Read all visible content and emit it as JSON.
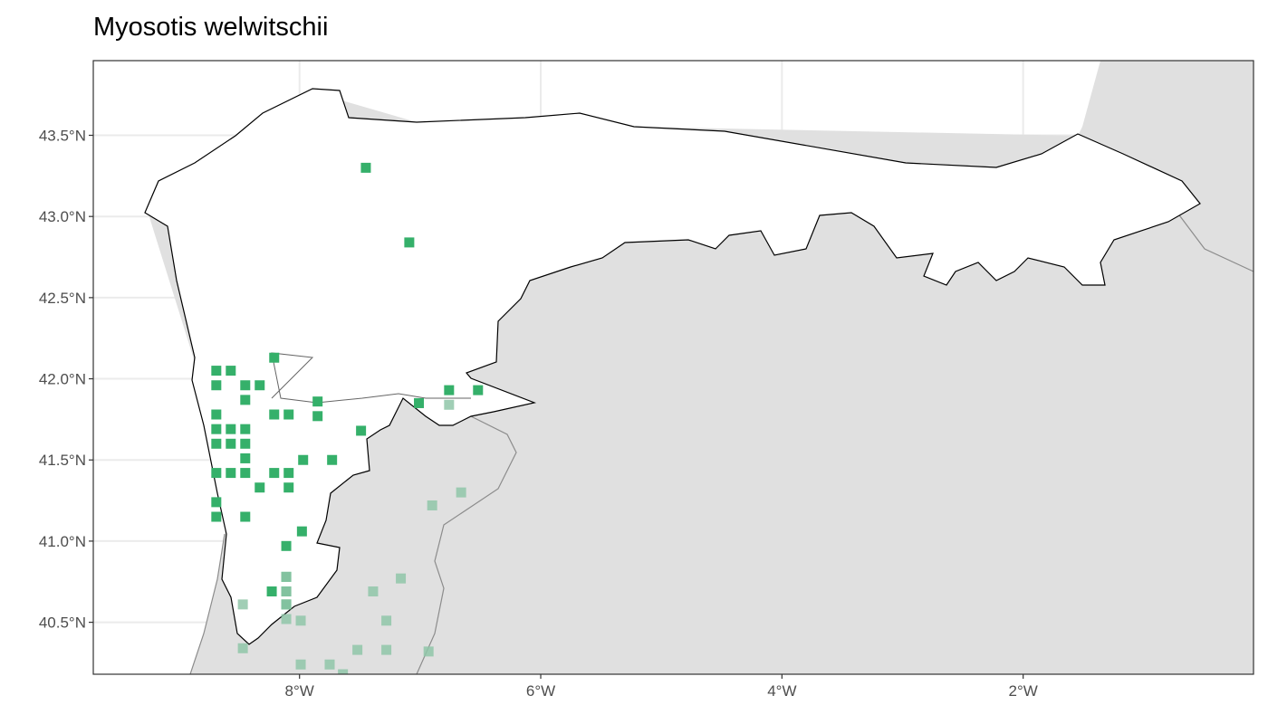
{
  "title": "Myosotis welwitschii",
  "chart_data": {
    "type": "scatter",
    "title": "Myosotis welwitschii",
    "xlabel": "",
    "ylabel": "",
    "xlim": [
      -9.71,
      -0.09
    ],
    "ylim": [
      40.18,
      43.96
    ],
    "grid": true,
    "x_ticks": [
      {
        "value": -8,
        "label": "8°W"
      },
      {
        "value": -6,
        "label": "6°W"
      },
      {
        "value": -4,
        "label": "4°W"
      },
      {
        "value": -2,
        "label": "2°W"
      }
    ],
    "y_ticks": [
      {
        "value": 40.5,
        "label": "40.5°N"
      },
      {
        "value": 41.0,
        "label": "41.0°N"
      },
      {
        "value": 41.5,
        "label": "41.5°N"
      },
      {
        "value": 42.0,
        "label": "42.0°N"
      },
      {
        "value": 42.5,
        "label": "42.5°N"
      },
      {
        "value": 43.0,
        "label": "43.0°N"
      },
      {
        "value": 43.5,
        "label": "43.5°N"
      }
    ],
    "colors": {
      "inside": "#35b06a",
      "outside": "#8fc6a8",
      "land_outside": "#e0e0e0",
      "region_fill": "#ffffff"
    },
    "series": [
      {
        "key": "inside",
        "points": [
          [
            -7.45,
            43.3
          ],
          [
            -7.09,
            42.84
          ],
          [
            -8.21,
            42.13
          ],
          [
            -8.69,
            42.05
          ],
          [
            -8.57,
            42.05
          ],
          [
            -8.69,
            41.96
          ],
          [
            -8.45,
            41.96
          ],
          [
            -8.33,
            41.96
          ],
          [
            -8.45,
            41.87
          ],
          [
            -7.85,
            41.86
          ],
          [
            -7.01,
            41.85
          ],
          [
            -6.76,
            41.93
          ],
          [
            -6.52,
            41.93
          ],
          [
            -8.69,
            41.78
          ],
          [
            -8.21,
            41.78
          ],
          [
            -8.09,
            41.78
          ],
          [
            -7.85,
            41.77
          ],
          [
            -7.49,
            41.68
          ],
          [
            -8.69,
            41.69
          ],
          [
            -8.57,
            41.69
          ],
          [
            -8.45,
            41.69
          ],
          [
            -8.69,
            41.6
          ],
          [
            -8.57,
            41.6
          ],
          [
            -8.45,
            41.6
          ],
          [
            -8.45,
            41.51
          ],
          [
            -7.97,
            41.5
          ],
          [
            -7.73,
            41.5
          ],
          [
            -8.69,
            41.42
          ],
          [
            -8.57,
            41.42
          ],
          [
            -8.45,
            41.42
          ],
          [
            -8.21,
            41.42
          ],
          [
            -8.09,
            41.42
          ],
          [
            -8.33,
            41.33
          ],
          [
            -8.09,
            41.33
          ],
          [
            -8.69,
            41.24
          ],
          [
            -8.69,
            41.15
          ],
          [
            -8.45,
            41.15
          ],
          [
            -7.98,
            41.06
          ],
          [
            -8.11,
            40.97
          ],
          [
            -8.11,
            40.78
          ],
          [
            -8.23,
            40.69
          ],
          [
            -8.11,
            40.69
          ],
          [
            -8.11,
            40.61
          ]
        ]
      },
      {
        "key": "outside",
        "points": [
          [
            -6.76,
            41.84
          ],
          [
            -6.9,
            41.22
          ],
          [
            -6.66,
            41.3
          ],
          [
            -8.11,
            40.78
          ],
          [
            -8.11,
            40.69
          ],
          [
            -8.11,
            40.61
          ],
          [
            -8.47,
            40.61
          ],
          [
            -8.11,
            40.52
          ],
          [
            -7.99,
            40.51
          ],
          [
            -7.39,
            40.69
          ],
          [
            -7.16,
            40.77
          ],
          [
            -7.28,
            40.51
          ],
          [
            -8.47,
            40.34
          ],
          [
            -7.52,
            40.33
          ],
          [
            -7.28,
            40.33
          ],
          [
            -6.93,
            40.32
          ],
          [
            -7.99,
            40.24
          ],
          [
            -7.75,
            40.24
          ],
          [
            -7.64,
            40.18
          ]
        ]
      }
    ]
  }
}
